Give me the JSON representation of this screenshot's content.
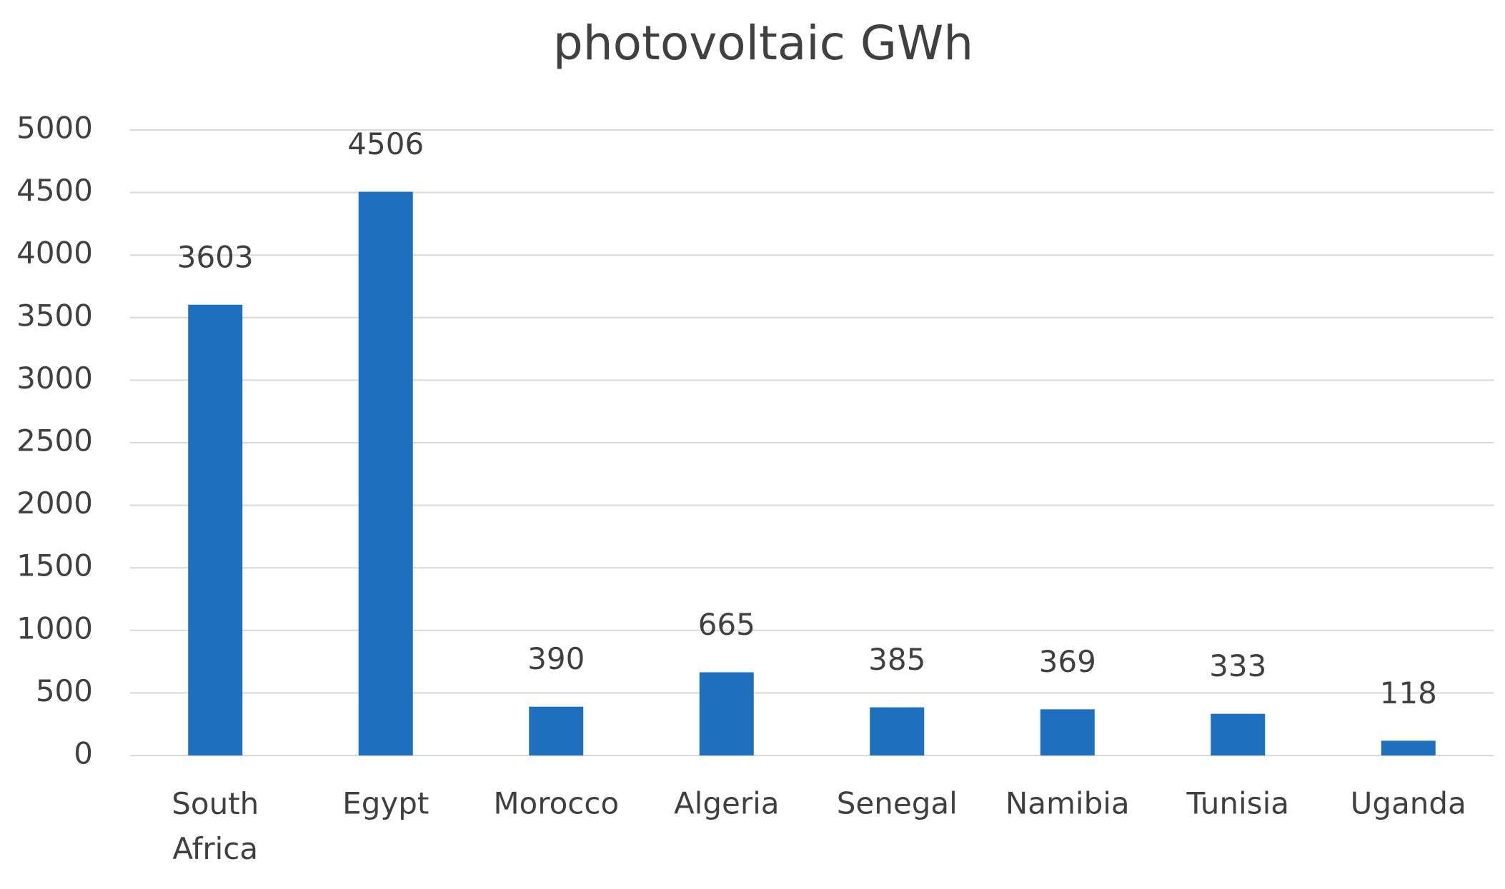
{
  "chart_data": {
    "type": "bar",
    "title": "photovoltaic GWh",
    "categories": [
      "South Africa",
      "Egypt",
      "Morocco",
      "Algeria",
      "Senegal",
      "Namibia",
      "Tunisia",
      "Uganda"
    ],
    "values": [
      3603,
      4506,
      390,
      665,
      385,
      369,
      333,
      118
    ],
    "color": "#1f6fbf",
    "ylim": [
      0,
      5000
    ],
    "yticks": [
      0,
      500,
      1000,
      1500,
      2000,
      2500,
      3000,
      3500,
      4000,
      4500,
      5000
    ],
    "grid": true
  }
}
